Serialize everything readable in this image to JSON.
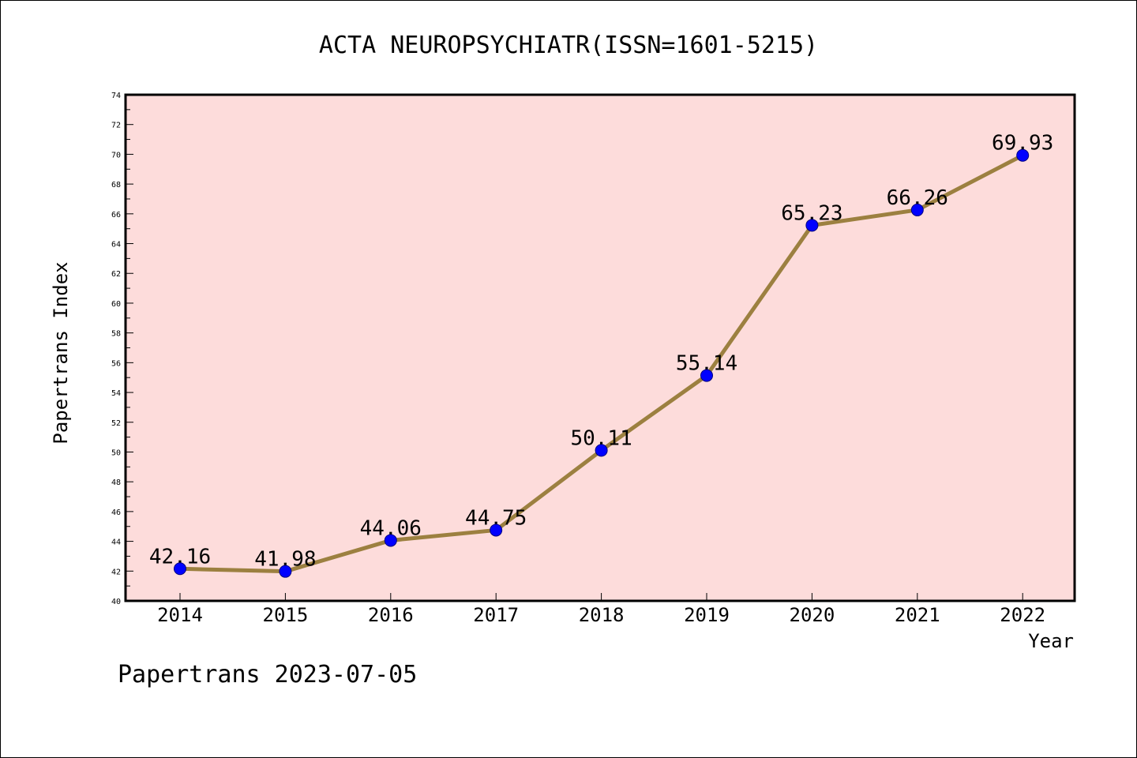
{
  "chart_data": {
    "type": "line",
    "title": "ACTA NEUROPSYCHIATR(ISSN=1601-5215)",
    "xlabel": "Year",
    "ylabel": "Papertrans Index",
    "categories": [
      "2014",
      "2015",
      "2016",
      "2017",
      "2018",
      "2019",
      "2020",
      "2021",
      "2022"
    ],
    "series": [
      {
        "values": [
          42.16,
          41.98,
          44.06,
          44.75,
          50.11,
          55.14,
          65.23,
          66.26,
          69.93
        ],
        "labels": [
          "42.16",
          "41.98",
          "44.06",
          "44.75",
          "50.11",
          "55.14",
          "65.23",
          "66.26",
          "69.93"
        ]
      }
    ],
    "ylim": [
      40,
      74
    ],
    "y_ticks": [
      "40",
      "42",
      "44",
      "46",
      "48",
      "50",
      "52",
      "54",
      "56",
      "58",
      "60",
      "62",
      "64",
      "66",
      "68",
      "70",
      "72",
      "74"
    ],
    "grid": false,
    "legend": "none"
  },
  "footer": {
    "text": "Papertrans 2023-07-05"
  },
  "colors": {
    "plot_background": "#fddcdb",
    "line": "#9c8040",
    "marker_fill": "#0000ff",
    "marker_edge": "#000080"
  }
}
